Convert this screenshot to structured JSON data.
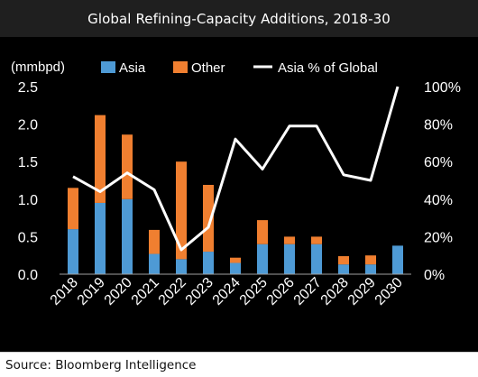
{
  "header": {
    "title": "Global Refining-Capacity Additions, 2018-30"
  },
  "footer": {
    "source": "Source: Bloomberg Intelligence"
  },
  "colors": {
    "asia": "#4e9ad5",
    "other": "#f07f30",
    "line": "#ffffff",
    "background": "#000000",
    "text": "#ffffff"
  },
  "chart_data": {
    "type": "bar",
    "stacked": true,
    "title": "",
    "categories": [
      "2018",
      "2019",
      "2020",
      "2021",
      "2022",
      "2023",
      "2024",
      "2025",
      "2026",
      "2027",
      "2028",
      "2029",
      "2030"
    ],
    "ylabel": "(mmbpd)",
    "ylim": [
      0,
      2.5
    ],
    "yticks": [
      "0.0",
      "0.5",
      "1.0",
      "1.5",
      "2.0",
      "2.5"
    ],
    "y2lim": [
      0,
      100
    ],
    "y2ticks": [
      "0%",
      "20%",
      "40%",
      "60%",
      "80%",
      "100%"
    ],
    "legend_position": "top",
    "grid": false,
    "series": [
      {
        "name": "Asia",
        "kind": "bar",
        "axis": "left",
        "values": [
          0.6,
          0.95,
          1.0,
          0.27,
          0.2,
          0.3,
          0.15,
          0.4,
          0.4,
          0.4,
          0.13,
          0.13,
          0.38
        ]
      },
      {
        "name": "Other",
        "kind": "bar",
        "axis": "left",
        "values": [
          0.55,
          1.17,
          0.86,
          0.32,
          1.3,
          0.89,
          0.07,
          0.32,
          0.1,
          0.1,
          0.11,
          0.12,
          0.0
        ]
      },
      {
        "name": "Asia % of Global",
        "kind": "line",
        "axis": "right",
        "values": [
          52,
          44,
          54,
          45,
          13,
          25,
          72,
          56,
          79,
          79,
          53,
          50,
          100
        ]
      }
    ]
  }
}
